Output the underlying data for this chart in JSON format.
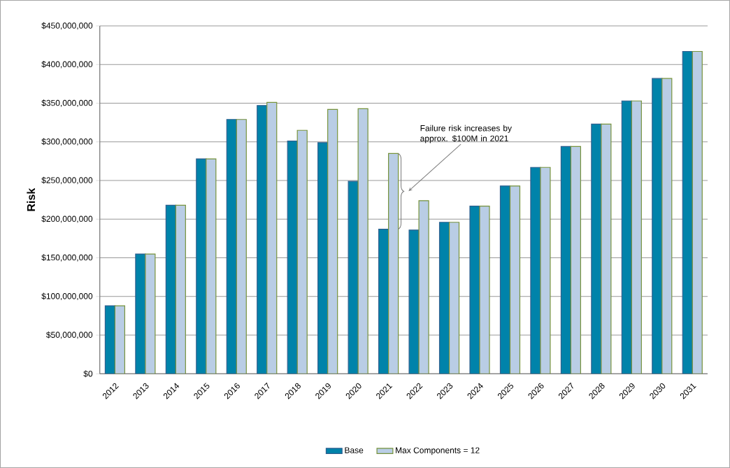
{
  "chart_data": {
    "type": "bar",
    "ylabel": "Risk",
    "categories": [
      "2012",
      "2013",
      "2014",
      "2015",
      "2016",
      "2017",
      "2018",
      "2019",
      "2020",
      "2021",
      "2022",
      "2023",
      "2024",
      "2025",
      "2026",
      "2027",
      "2028",
      "2029",
      "2030",
      "2031"
    ],
    "series": [
      {
        "name": "Base",
        "color": "#0083aa",
        "values": [
          88000000,
          155000000,
          218000000,
          278000000,
          329000000,
          347000000,
          301000000,
          299000000,
          249000000,
          187000000,
          186000000,
          196000000,
          217000000,
          243000000,
          267000000,
          294000000,
          323000000,
          353000000,
          382000000,
          417000000
        ]
      },
      {
        "name": "Max Components = 12",
        "color": "#b9cde5",
        "values": [
          88000000,
          155000000,
          218000000,
          278000000,
          329000000,
          351000000,
          315000000,
          342000000,
          343000000,
          285000000,
          224000000,
          196000000,
          217000000,
          243000000,
          267000000,
          294000000,
          323000000,
          353000000,
          382000000,
          417000000
        ]
      }
    ],
    "ylim": [
      0,
      450000000
    ],
    "yticks": [
      {
        "value": 0,
        "label": "$0"
      },
      {
        "value": 50000000,
        "label": "$50,000,000"
      },
      {
        "value": 100000000,
        "label": "$100,000,000"
      },
      {
        "value": 150000000,
        "label": "$150,000,000"
      },
      {
        "value": 200000000,
        "label": "$200,000,000"
      },
      {
        "value": 250000000,
        "label": "$250,000,000"
      },
      {
        "value": 300000000,
        "label": "$300,000,000"
      },
      {
        "value": 350000000,
        "label": "$350,000,000"
      },
      {
        "value": 400000000,
        "label": "$400,000,000"
      },
      {
        "value": 450000000,
        "label": "$450,000,000"
      }
    ],
    "annotations": [
      "Failure risk increases by approx. $100M in 2021"
    ],
    "grid": "y",
    "legend": "bottom"
  }
}
